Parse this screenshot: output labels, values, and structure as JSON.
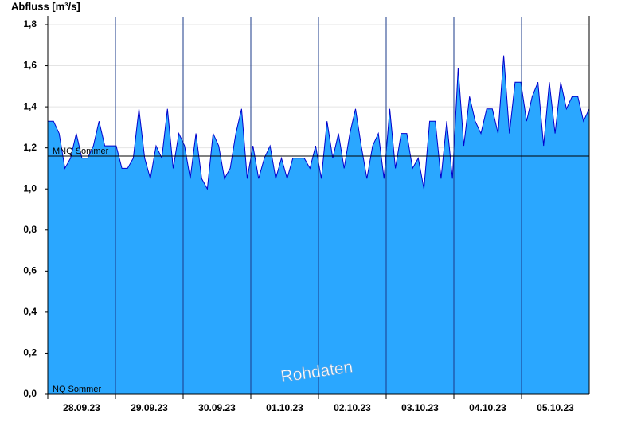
{
  "chart_data": {
    "type": "area",
    "y_axis_label": "Abfluss [m³/s]",
    "watermark": "Rohdaten",
    "x_labels": [
      "28.09.23",
      "29.09.23",
      "30.09.23",
      "01.10.23",
      "02.10.23",
      "03.10.23",
      "04.10.23",
      "05.10.23"
    ],
    "series": [
      {
        "name": "Abfluss",
        "color": "#2aa7ff",
        "line_color": "#0000cc",
        "values": [
          1.33,
          1.33,
          1.27,
          1.1,
          1.15,
          1.27,
          1.15,
          1.15,
          1.21,
          1.33,
          1.21,
          1.21,
          1.21,
          1.1,
          1.1,
          1.15,
          1.39,
          1.15,
          1.05,
          1.21,
          1.15,
          1.39,
          1.1,
          1.27,
          1.21,
          1.05,
          1.27,
          1.05,
          1.0,
          1.27,
          1.21,
          1.05,
          1.1,
          1.27,
          1.39,
          1.05,
          1.21,
          1.05,
          1.15,
          1.21,
          1.05,
          1.15,
          1.05,
          1.15,
          1.15,
          1.15,
          1.1,
          1.21,
          1.05,
          1.33,
          1.15,
          1.27,
          1.1,
          1.27,
          1.39,
          1.21,
          1.05,
          1.21,
          1.27,
          1.05,
          1.39,
          1.1,
          1.27,
          1.27,
          1.1,
          1.15,
          1.0,
          1.33,
          1.33,
          1.05,
          1.33,
          1.05,
          1.59,
          1.21,
          1.45,
          1.33,
          1.27,
          1.39,
          1.39,
          1.27,
          1.65,
          1.27,
          1.52,
          1.52,
          1.33,
          1.45,
          1.52,
          1.21,
          1.52,
          1.27,
          1.52,
          1.39,
          1.45,
          1.45,
          1.33,
          1.39
        ]
      }
    ],
    "reference_lines": [
      {
        "label": "MNQ Sommer",
        "value": 1.16
      },
      {
        "label": "NQ Sommer",
        "value": 0
      }
    ],
    "ylim": [
      0,
      1.8
    ],
    "yticks": [
      {
        "value": 0,
        "label": "0,0"
      },
      {
        "value": 0.2,
        "label": "0,2"
      },
      {
        "value": 0.4,
        "label": "0,4"
      },
      {
        "value": 0.6,
        "label": "0,6"
      },
      {
        "value": 0.8,
        "label": "0,8"
      },
      {
        "value": 1.0,
        "label": "1,0"
      },
      {
        "value": 1.2,
        "label": "1,2"
      },
      {
        "value": 1.4,
        "label": "1,4"
      },
      {
        "value": 1.6,
        "label": "1,6"
      },
      {
        "value": 1.8,
        "label": "1,8"
      }
    ],
    "grid": true
  }
}
